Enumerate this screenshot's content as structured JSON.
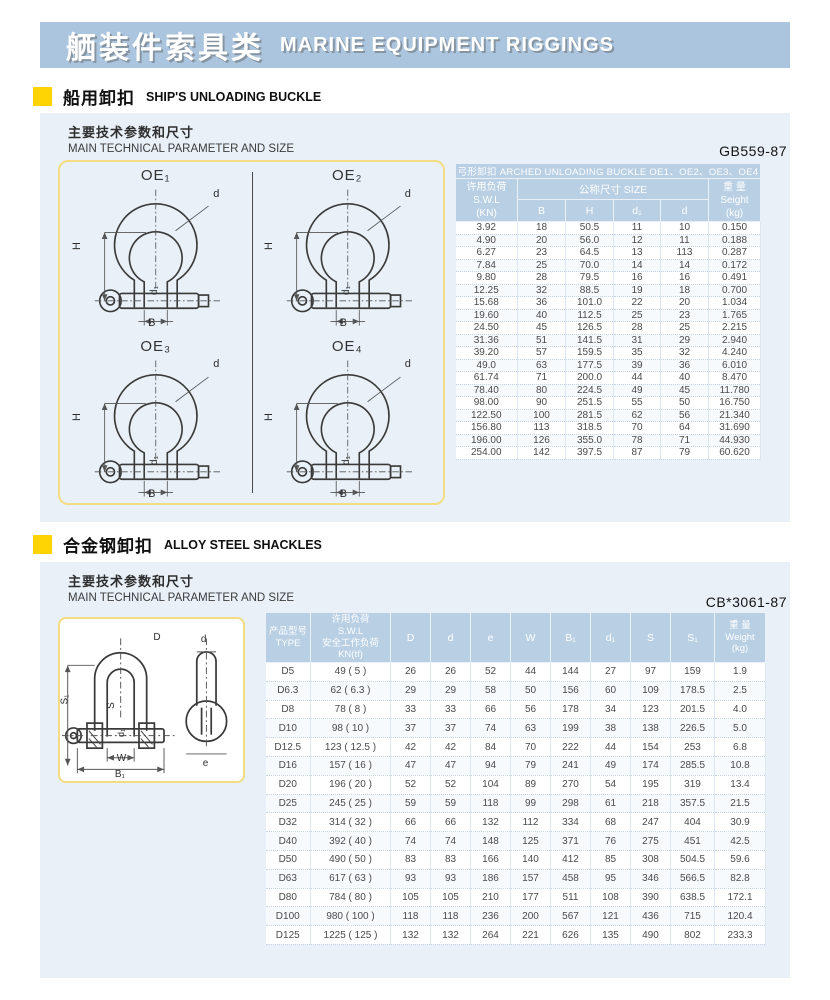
{
  "banner": {
    "title_cn": "舾装件索具类",
    "title_en": "MARINE EQUIPMENT RIGGINGS"
  },
  "colors": {
    "banner_blue": "#aac5dd",
    "panel_blue": "#e9f0f8",
    "table_header_blue": "#b9cfe4",
    "accent_yellow": "#ffd402",
    "diagram_border": "#f3dc82"
  },
  "section1": {
    "title_cn": "船用卸扣",
    "title_en": "SHIP'S UNLOADING BUCKLE",
    "subtitle_cn": "主要技术参数和尺寸",
    "subtitle_en": "MAIN TECHNICAL PARAMETER AND SIZE",
    "standard": "GB559-87",
    "diagram": {
      "variants": [
        "OE₁",
        "OE₂",
        "OE₃",
        "OE₄"
      ],
      "dims": {
        "H": "H",
        "B": "B",
        "d": "d",
        "d1": "d₁"
      }
    },
    "table": {
      "title": "弓形卸扣 ARCHED UNLOADING BUCKLE OE1、OE2、OE3、OE4",
      "swl_header": "许用负荷\nS.W.L\n(KN)",
      "size_header": "公称尺寸  SIZE",
      "weight_header": "重 量\nSeight\n(kg)",
      "sub_columns": [
        "B",
        "H",
        "d₁",
        "d"
      ],
      "rows": [
        [
          "3.92",
          "18",
          "50.5",
          "11",
          "10",
          "0.150"
        ],
        [
          "4.90",
          "20",
          "56.0",
          "12",
          "11",
          "0.188"
        ],
        [
          "6.27",
          "23",
          "64.5",
          "13",
          "113",
          "0.287"
        ],
        [
          "7.84",
          "25",
          "70.0",
          "14",
          "14",
          "0.172"
        ],
        [
          "9.80",
          "28",
          "79.5",
          "16",
          "16",
          "0.491"
        ],
        [
          "12.25",
          "32",
          "88.5",
          "19",
          "18",
          "0.700"
        ],
        [
          "15.68",
          "36",
          "101.0",
          "22",
          "20",
          "1.034"
        ],
        [
          "19.60",
          "40",
          "112.5",
          "25",
          "23",
          "1.765"
        ],
        [
          "24.50",
          "45",
          "126.5",
          "28",
          "25",
          "2.215"
        ],
        [
          "31.36",
          "51",
          "141.5",
          "31",
          "29",
          "2.940"
        ],
        [
          "39.20",
          "57",
          "159.5",
          "35",
          "32",
          "4.240"
        ],
        [
          "49.0",
          "63",
          "177.5",
          "39",
          "36",
          "6.010"
        ],
        [
          "61.74",
          "71",
          "200.0",
          "44",
          "40",
          "8.470"
        ],
        [
          "78.40",
          "80",
          "224.5",
          "49",
          "45",
          "11.780"
        ],
        [
          "98.00",
          "90",
          "251.5",
          "55",
          "50",
          "16.750"
        ],
        [
          "122.50",
          "100",
          "281.5",
          "62",
          "56",
          "21.340"
        ],
        [
          "156.80",
          "113",
          "318.5",
          "70",
          "64",
          "31.690"
        ],
        [
          "196.00",
          "126",
          "355.0",
          "78",
          "71",
          "44.930"
        ],
        [
          "254.00",
          "142",
          "397.5",
          "87",
          "79",
          "60.620"
        ]
      ]
    }
  },
  "section2": {
    "title_cn": "合金钢卸扣",
    "title_en": "ALLOY STEEL SHACKLES",
    "subtitle_cn": "主要技术参数和尺寸",
    "subtitle_en": "MAIN TECHNICAL PARAMETER AND SIZE",
    "standard": "CB*3061-87",
    "diagram": {
      "labels": {
        "D": "D",
        "S1": "S₁",
        "S": "S",
        "d1": "d₁",
        "W": "W",
        "B1": "B₁",
        "d": "d",
        "e": "e"
      }
    },
    "table": {
      "type_header": "产品型号\nTYPE",
      "swl_header": "许用负荷\nS.W.L\n安全工作负荷\nKN(tf)",
      "weight_header": "重 量\nWeight\n(kg)",
      "dim_columns": [
        "D",
        "d",
        "e",
        "W",
        "B₁",
        "d₁",
        "S",
        "S₁"
      ],
      "rows": [
        [
          "D5",
          "49 ( 5 )",
          "26",
          "26",
          "52",
          "44",
          "144",
          "27",
          "97",
          "159",
          "1.9"
        ],
        [
          "D6.3",
          "62 ( 6.3 )",
          "29",
          "29",
          "58",
          "50",
          "156",
          "60",
          "109",
          "178.5",
          "2.5"
        ],
        [
          "D8",
          "78 ( 8 )",
          "33",
          "33",
          "66",
          "56",
          "178",
          "34",
          "123",
          "201.5",
          "4.0"
        ],
        [
          "D10",
          "98 ( 10 )",
          "37",
          "37",
          "74",
          "63",
          "199",
          "38",
          "138",
          "226.5",
          "5.0"
        ],
        [
          "D12.5",
          "123 ( 12.5 )",
          "42",
          "42",
          "84",
          "70",
          "222",
          "44",
          "154",
          "253",
          "6.8"
        ],
        [
          "D16",
          "157 ( 16 )",
          "47",
          "47",
          "94",
          "79",
          "241",
          "49",
          "174",
          "285.5",
          "10.8"
        ],
        [
          "D20",
          "196 ( 20 )",
          "52",
          "52",
          "104",
          "89",
          "270",
          "54",
          "195",
          "319",
          "13.4"
        ],
        [
          "D25",
          "245 ( 25 )",
          "59",
          "59",
          "118",
          "99",
          "298",
          "61",
          "218",
          "357.5",
          "21.5"
        ],
        [
          "D32",
          "314 ( 32 )",
          "66",
          "66",
          "132",
          "112",
          "334",
          "68",
          "247",
          "404",
          "30.9"
        ],
        [
          "D40",
          "392 ( 40 )",
          "74",
          "74",
          "148",
          "125",
          "371",
          "76",
          "275",
          "451",
          "42.5"
        ],
        [
          "D50",
          "490 ( 50 )",
          "83",
          "83",
          "166",
          "140",
          "412",
          "85",
          "308",
          "504.5",
          "59.6"
        ],
        [
          "D63",
          "617 ( 63 )",
          "93",
          "93",
          "186",
          "157",
          "458",
          "95",
          "346",
          "566.5",
          "82.8"
        ],
        [
          "D80",
          "784 ( 80 )",
          "105",
          "105",
          "210",
          "177",
          "511",
          "108",
          "390",
          "638.5",
          "172.1"
        ],
        [
          "D100",
          "980 ( 100 )",
          "118",
          "118",
          "236",
          "200",
          "567",
          "121",
          "436",
          "715",
          "120.4"
        ],
        [
          "D125",
          "1225 ( 125 )",
          "132",
          "132",
          "264",
          "221",
          "626",
          "135",
          "490",
          "802",
          "233.3"
        ]
      ]
    }
  }
}
